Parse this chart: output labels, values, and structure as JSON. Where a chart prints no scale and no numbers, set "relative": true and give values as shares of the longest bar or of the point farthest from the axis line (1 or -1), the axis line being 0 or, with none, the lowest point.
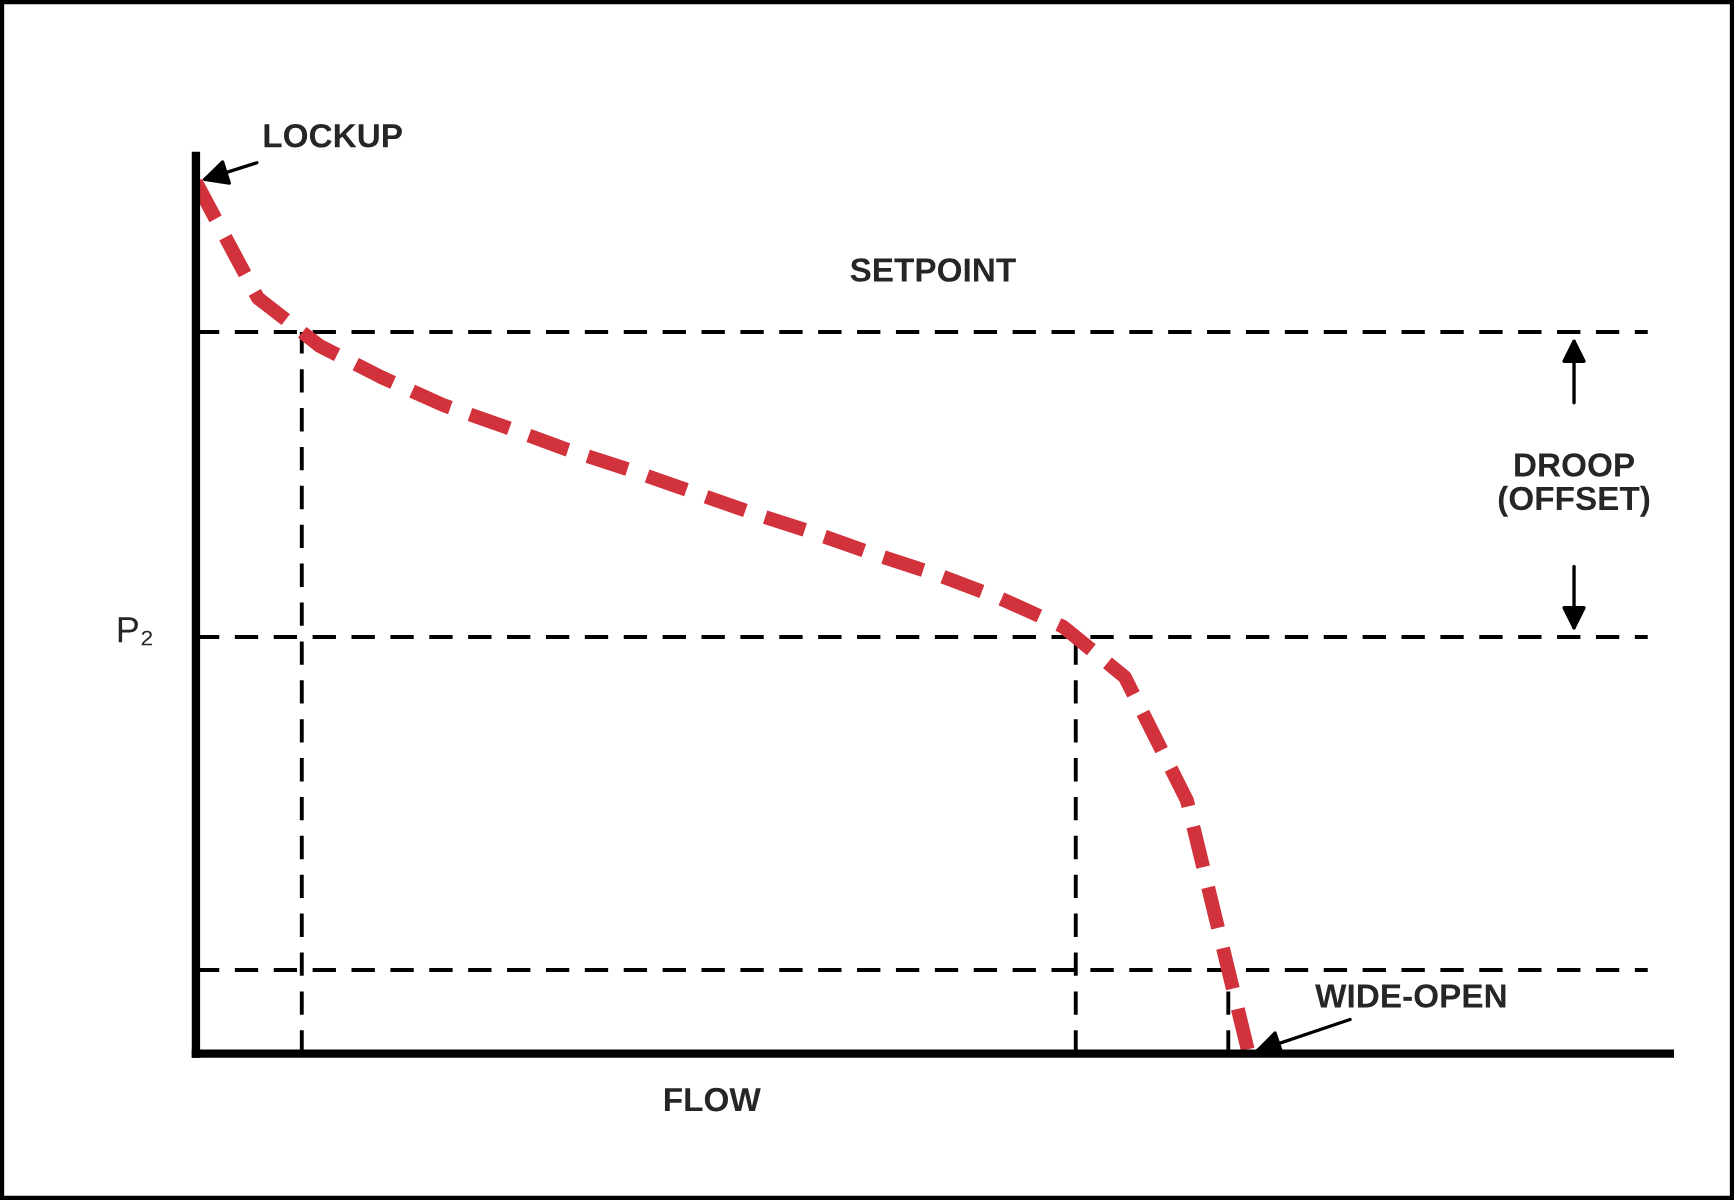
{
  "chart_data": {
    "type": "line",
    "relative": true,
    "xlabel": "FLOW",
    "ylabel": "P₂",
    "categories": [
      null,
      null,
      null,
      null,
      null,
      null,
      null,
      null,
      null,
      null,
      null,
      null,
      null,
      null,
      null,
      null,
      null,
      null
    ],
    "series": [
      {
        "color": "#d2323c",
        "values": [
          1.0,
          0.867,
          0.812,
          0.776,
          0.744,
          0.719,
          0.693,
          0.67,
          0.645,
          0.62,
          0.597,
          0.572,
          0.549,
          0.522,
          0.49,
          0.432,
          0.291,
          0
        ]
      }
    ],
    "line_style": "dashed",
    "marker": "none",
    "legend": false,
    "ref_lines": [
      {
        "axis": "y",
        "value": 0.828,
        "label": "SETPOINT",
        "color": "#000000",
        "line_style": "dashed"
      },
      {
        "axis": "y",
        "value": 0.478,
        "color": "#000000",
        "line_style": "dashed"
      },
      {
        "axis": "y",
        "value": 0.096,
        "color": "#000000",
        "line_style": "dashed"
      }
    ],
    "annotations": [
      "LOCKUP",
      "WIDE-OPEN",
      "DROOP\n(OFFSET)"
    ]
  }
}
